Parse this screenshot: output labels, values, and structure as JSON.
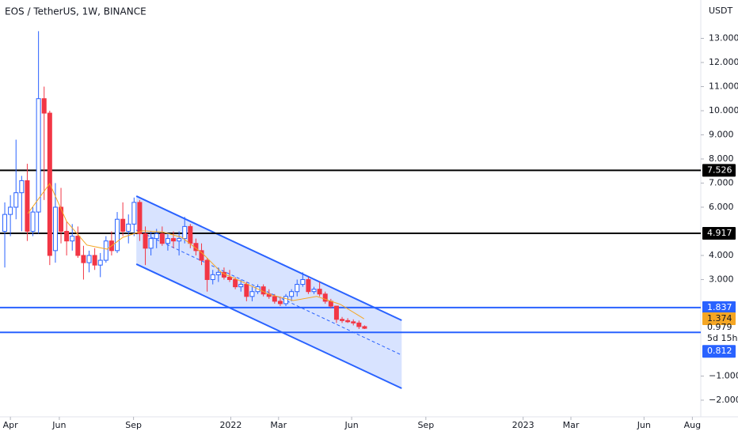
{
  "chart_data": {
    "type": "candlestick",
    "title": "EOS / TetherUS, 1W, BINANCE",
    "y_unit": "USDT",
    "xlim": [
      -0.85,
      123.8
    ],
    "ylim": [
      -2.69,
      14.59
    ],
    "xticks": [
      {
        "value": 1,
        "label": "Apr"
      },
      {
        "value": 9.7,
        "label": "Jun"
      },
      {
        "value": 22.9,
        "label": "Sep"
      },
      {
        "value": 40.2,
        "label": "2022"
      },
      {
        "value": 48.7,
        "label": "Mar"
      },
      {
        "value": 61.7,
        "label": "Jun"
      },
      {
        "value": 74.9,
        "label": "Sep"
      },
      {
        "value": 92.2,
        "label": "2023"
      },
      {
        "value": 100.7,
        "label": "Mar"
      },
      {
        "value": 113.7,
        "label": "Jun"
      },
      {
        "value": 122.3,
        "label": "Aug"
      }
    ],
    "yticks": [
      {
        "value": 13,
        "label": "13.000"
      },
      {
        "value": 12,
        "label": "12.000"
      },
      {
        "value": 11,
        "label": "11.000"
      },
      {
        "value": 10,
        "label": "10.000"
      },
      {
        "value": 9,
        "label": "9.000"
      },
      {
        "value": 8,
        "label": "8.000"
      },
      {
        "value": 7,
        "label": "7.000"
      },
      {
        "value": 6,
        "label": "6.000"
      },
      {
        "value": 4,
        "label": "4.000"
      },
      {
        "value": 3,
        "label": "3.000"
      },
      {
        "value": -1,
        "label": "−1.000"
      },
      {
        "value": -2,
        "label": "−2.000"
      }
    ],
    "up_color": "#2962ff",
    "down_color": "#f23645",
    "x": [
      0,
      1,
      2,
      3,
      4,
      5,
      6,
      7,
      8,
      9,
      10,
      11,
      12,
      13,
      14,
      15,
      16,
      17,
      18,
      19,
      20,
      21,
      22,
      23,
      24,
      25,
      26,
      27,
      28,
      29,
      30,
      31,
      32,
      33,
      34,
      35,
      36,
      37,
      38,
      39,
      40,
      41,
      42,
      43,
      44,
      45,
      46,
      47,
      48,
      49,
      50,
      51,
      52,
      53,
      54,
      55,
      56,
      57,
      58,
      59,
      60,
      61,
      62,
      63,
      64
    ],
    "open": [
      5.0,
      5.7,
      6.0,
      6.6,
      7.1,
      5.0,
      5.8,
      10.5,
      9.9,
      4.2,
      6.0,
      5.0,
      4.6,
      4.8,
      4.0,
      3.7,
      4.0,
      3.6,
      3.8,
      4.6,
      4.2,
      5.5,
      5.0,
      5.3,
      6.2,
      4.9,
      4.3,
      4.7,
      4.9,
      4.5,
      4.7,
      4.6,
      4.7,
      5.2,
      4.5,
      4.2,
      3.8,
      3.0,
      3.2,
      3.3,
      3.1,
      3.0,
      2.7,
      2.8,
      2.3,
      2.5,
      2.7,
      2.4,
      2.3,
      2.1,
      2.0,
      2.3,
      2.5,
      2.8,
      3.0,
      2.5,
      2.6,
      2.4,
      2.1,
      1.9,
      1.35,
      1.3,
      1.25,
      1.2,
      1.05
    ],
    "high": [
      6.2,
      6.5,
      8.8,
      7.3,
      7.8,
      6.0,
      13.3,
      11.0,
      10.0,
      7.0,
      6.8,
      5.4,
      5.3,
      5.2,
      4.4,
      4.2,
      4.3,
      4.1,
      4.8,
      5.0,
      5.8,
      6.2,
      5.7,
      6.4,
      6.3,
      5.2,
      5.0,
      5.1,
      5.2,
      4.9,
      5.0,
      5.0,
      5.6,
      5.3,
      4.7,
      4.5,
      3.9,
      3.4,
      3.5,
      3.5,
      3.4,
      3.1,
      3.0,
      2.9,
      2.7,
      2.8,
      2.8,
      2.6,
      2.4,
      2.3,
      2.4,
      2.6,
      3.0,
      3.3,
      3.1,
      2.7,
      2.9,
      2.5,
      2.2,
      1.9,
      1.45,
      1.4,
      1.35,
      1.3,
      1.1
    ],
    "low": [
      3.5,
      4.8,
      5.5,
      5.0,
      4.6,
      4.8,
      4.9,
      6.3,
      3.6,
      3.7,
      4.5,
      4.0,
      4.2,
      3.9,
      3.0,
      3.3,
      3.4,
      3.1,
      3.7,
      4.0,
      4.1,
      4.8,
      4.5,
      4.8,
      4.6,
      3.6,
      4.0,
      4.3,
      4.4,
      4.2,
      4.3,
      4.0,
      4.5,
      4.3,
      4.0,
      3.6,
      2.5,
      2.8,
      2.9,
      3.0,
      2.9,
      2.6,
      2.5,
      2.1,
      2.1,
      2.4,
      2.3,
      2.2,
      2.0,
      1.9,
      1.9,
      2.1,
      2.3,
      2.7,
      2.4,
      2.4,
      2.3,
      2.0,
      1.8,
      1.2,
      1.2,
      1.2,
      1.1,
      0.95,
      0.95
    ],
    "close": [
      5.7,
      6.0,
      6.6,
      7.1,
      5.0,
      5.8,
      10.5,
      9.9,
      4.0,
      6.0,
      5.0,
      4.6,
      4.8,
      4.0,
      3.7,
      4.0,
      3.6,
      3.8,
      4.6,
      4.2,
      5.5,
      5.0,
      5.3,
      6.2,
      4.9,
      4.3,
      4.7,
      4.9,
      4.5,
      4.7,
      4.6,
      4.7,
      5.2,
      4.5,
      4.2,
      3.8,
      3.0,
      3.2,
      3.3,
      3.1,
      3.0,
      2.7,
      2.8,
      2.3,
      2.5,
      2.7,
      2.4,
      2.3,
      2.1,
      2.0,
      2.3,
      2.5,
      2.8,
      3.0,
      2.5,
      2.6,
      2.4,
      2.1,
      1.9,
      1.35,
      1.3,
      1.25,
      1.2,
      1.05,
      0.979
    ],
    "countdown": "5d 15h",
    "moving_average": {
      "color": "#f5a623",
      "x": [
        4.1,
        8.0,
        11.0,
        14.6,
        18.2,
        21.0,
        24.5,
        28.0,
        31.5,
        35.1,
        38.6,
        42.8,
        47.0,
        51.3,
        55.5,
        59.7,
        63.9
      ],
      "values": [
        5.74,
        6.98,
        5.41,
        4.43,
        4.26,
        4.75,
        5.02,
        4.98,
        4.75,
        4.1,
        3.28,
        2.85,
        2.39,
        2.13,
        2.3,
        1.97,
        1.374
      ]
    },
    "hlines": [
      {
        "value": 7.526,
        "color": "#000000"
      },
      {
        "value": 4.917,
        "color": "#000000"
      },
      {
        "value": 1.837,
        "color": "#2962ff"
      },
      {
        "value": 0.812,
        "color": "#2962ff"
      }
    ],
    "channel": {
      "color": "#2962ff",
      "x": [
        23.4,
        70.6
      ],
      "upper": [
        6.46,
        1.31
      ],
      "middle": [
        5.05,
        -0.13
      ],
      "lower": [
        3.64,
        -1.51
      ]
    }
  }
}
